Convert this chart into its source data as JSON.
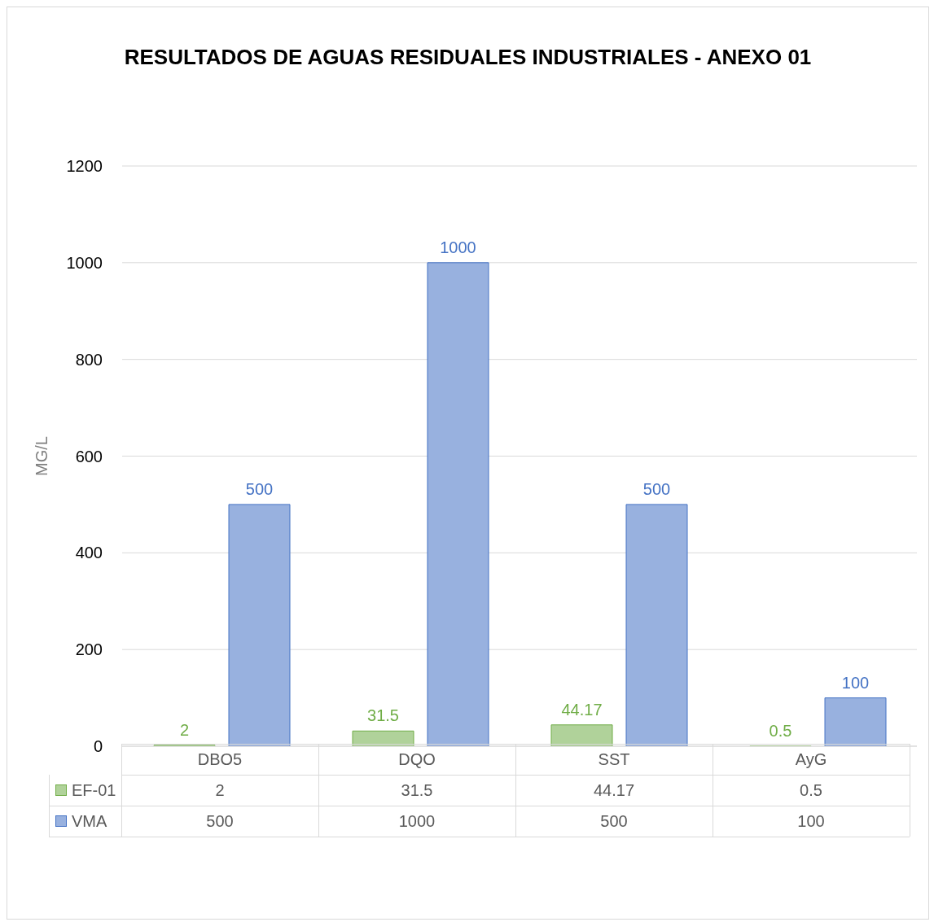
{
  "chart_data": {
    "type": "bar",
    "title": "RESULTADOS DE AGUAS RESIDUALES INDUSTRIALES - ANEXO 01",
    "ylabel": "MG/L",
    "categories": [
      "DBO5",
      "DQO",
      "SST",
      "AyG"
    ],
    "series": [
      {
        "name": "EF-01",
        "color": "#70ad47",
        "values": [
          2,
          31.5,
          44.17,
          0.5
        ],
        "value_labels": [
          "2",
          "31.5",
          "44.17",
          "0.5"
        ]
      },
      {
        "name": "VMA",
        "color": "#4472c4",
        "values": [
          500,
          1000,
          500,
          100
        ],
        "value_labels": [
          "500",
          "1000",
          "500",
          "100"
        ]
      }
    ],
    "ylim": [
      0,
      1200
    ],
    "yticks": [
      0,
      200,
      400,
      600,
      800,
      1000,
      1200
    ],
    "grid": "y",
    "data_labels": true,
    "legend": "bottom"
  }
}
